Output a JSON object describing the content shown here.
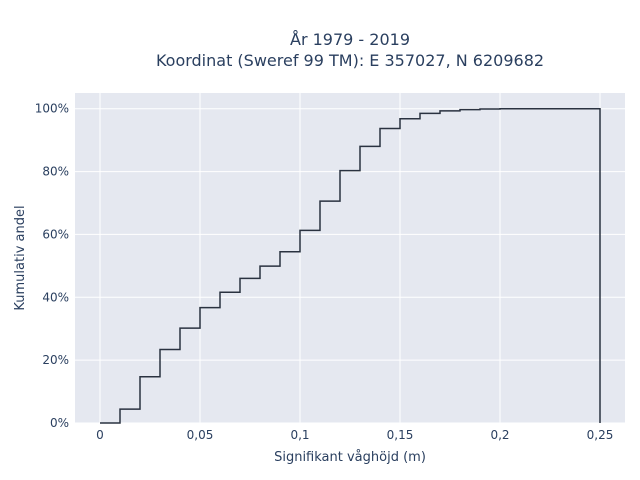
{
  "chart_data": {
    "type": "line",
    "line_shape": "step",
    "title_lines": [
      "År 1979 - 2019",
      "Koordinat (Sweref 99 TM): E 357027, N 6209682"
    ],
    "xlabel": "Signifikant våghöjd (m)",
    "ylabel": "Kumulativ andel",
    "xlim": [
      -0.0125,
      0.2625
    ],
    "ylim": [
      0,
      1.05
    ],
    "x_ticks": [
      0,
      0.05,
      0.1,
      0.15,
      0.2,
      0.25
    ],
    "x_tick_labels": [
      "0",
      "0,05",
      "0,1",
      "0,15",
      "0,2",
      "0,25"
    ],
    "y_ticks": [
      0,
      0.2,
      0.4,
      0.6,
      0.8,
      1.0
    ],
    "y_tick_labels": [
      "0%",
      "20%",
      "40%",
      "60%",
      "80%",
      "100%"
    ],
    "grid": true,
    "series": [
      {
        "color": "#2a3240",
        "x": [
          0,
          0.01,
          0.02,
          0.03,
          0.04,
          0.05,
          0.06,
          0.07,
          0.08,
          0.09,
          0.1,
          0.11,
          0.12,
          0.13,
          0.14,
          0.15,
          0.16,
          0.17,
          0.18,
          0.19,
          0.2,
          0.21,
          0.22,
          0.23,
          0.24,
          0.25
        ],
        "y": [
          0,
          0.044,
          0.147,
          0.234,
          0.302,
          0.367,
          0.416,
          0.46,
          0.499,
          0.545,
          0.613,
          0.706,
          0.803,
          0.88,
          0.937,
          0.968,
          0.985,
          0.993,
          0.997,
          0.999,
          1.0,
          1.0,
          1.0,
          1.0,
          1.0,
          0
        ]
      }
    ]
  },
  "colors": {
    "plot_background": "#e5e8f0",
    "grid": "#ffffff",
    "text": "#2a3f5f"
  }
}
